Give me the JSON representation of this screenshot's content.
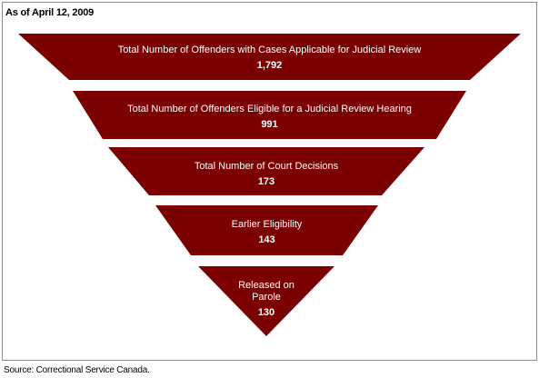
{
  "header": {
    "as_of": "As of April 12, 2009"
  },
  "funnel": {
    "fill_color": "#7b0000",
    "stages": [
      {
        "label_lines": [
          "Total Number of Offenders with Cases Applicable for Judicial Review"
        ],
        "value": "1,792"
      },
      {
        "label_lines": [
          "Total Number of Offenders Eligible for a Judicial Review Hearing"
        ],
        "value": "991"
      },
      {
        "label_lines": [
          "Total Number of Court Decisions"
        ],
        "value": "173"
      },
      {
        "label_lines": [
          "Earlier Eligibility"
        ],
        "value": "143"
      },
      {
        "label_lines": [
          "Released on",
          "Parole"
        ],
        "value": "130"
      }
    ]
  },
  "footer": {
    "source": "Source: Correctional Service Canada."
  }
}
